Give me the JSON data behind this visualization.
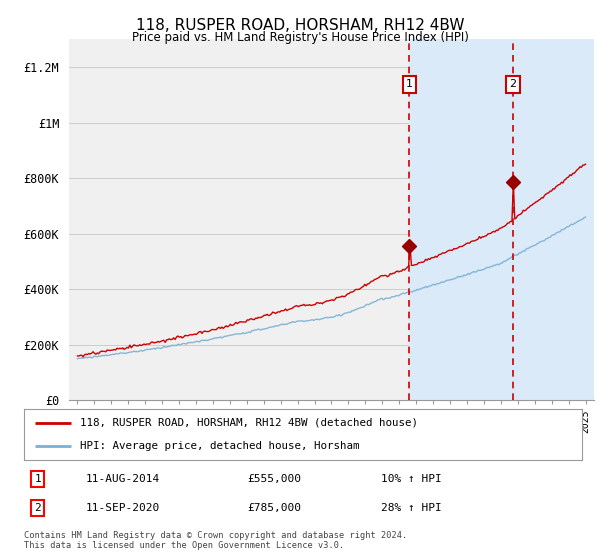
{
  "title": "118, RUSPER ROAD, HORSHAM, RH12 4BW",
  "subtitle": "Price paid vs. HM Land Registry's House Price Index (HPI)",
  "legend_line1": "118, RUSPER ROAD, HORSHAM, RH12 4BW (detached house)",
  "legend_line2": "HPI: Average price, detached house, Horsham",
  "transaction1_date": "11-AUG-2014",
  "transaction1_price": "£555,000",
  "transaction1_hpi": "10% ↑ HPI",
  "transaction2_date": "11-SEP-2020",
  "transaction2_price": "£785,000",
  "transaction2_hpi": "28% ↑ HPI",
  "footnote": "Contains HM Land Registry data © Crown copyright and database right 2024.\nThis data is licensed under the Open Government Licence v3.0.",
  "ylabel_ticks": [
    "£0",
    "£200K",
    "£400K",
    "£600K",
    "£800K",
    "£1M",
    "£1.2M"
  ],
  "ytick_vals": [
    0,
    200000,
    400000,
    600000,
    800000,
    1000000,
    1200000
  ],
  "ylim": [
    0,
    1300000
  ],
  "background_color": "#ffffff",
  "plot_bg_color": "#f0f0f0",
  "shaded_color": "#daeaf8",
  "line_color_red": "#cc0000",
  "line_color_blue": "#7ab0d4",
  "dashed_color": "#cc0000",
  "x_start_year": 1995,
  "x_end_year": 2025,
  "transaction1_year": 2014.6,
  "transaction2_year": 2020.7,
  "marker1_value": 555000,
  "marker2_value": 785000
}
